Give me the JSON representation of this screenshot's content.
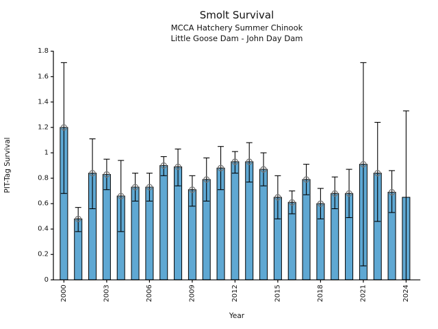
{
  "header": {
    "title": "Smolt Survival",
    "subtitle1": "MCCA Hatchery Summer Chinook",
    "subtitle2": "Little Goose Dam - John Day Dam"
  },
  "chart_data": {
    "type": "bar",
    "title": "Smolt Survival",
    "subtitle1": "MCCA Hatchery Summer Chinook",
    "subtitle2": "Little Goose Dam - John Day Dam",
    "xlabel": "Year",
    "ylabel": "PIT-Tag Survival",
    "ylim": [
      0,
      1.8
    ],
    "ytick_values": [
      0,
      0.2,
      0.4,
      0.6,
      0.8,
      1.0,
      1.2,
      1.4,
      1.6,
      1.8
    ],
    "ytick_labels": [
      "0",
      "0.2",
      "0.4",
      "0.6",
      "0.8",
      "1",
      "1.2",
      "1.4",
      "1.6",
      "1.8"
    ],
    "xtick_years": [
      2000,
      2003,
      2006,
      2009,
      2012,
      2015,
      2018,
      2021,
      2024
    ],
    "grid": false,
    "legend": "none",
    "bar_color": "#5FA8D3",
    "bar_edge_color": "#000000",
    "error_color": "#000000",
    "marker_color": "#777777",
    "marker_cross_color": "#222222",
    "years": [
      2000,
      2001,
      2002,
      2003,
      2004,
      2005,
      2006,
      2007,
      2008,
      2009,
      2010,
      2011,
      2012,
      2013,
      2014,
      2015,
      2016,
      2017,
      2018,
      2019,
      2020,
      2021,
      2022,
      2023,
      2024
    ],
    "values": [
      1.2,
      0.48,
      0.84,
      0.83,
      0.66,
      0.73,
      0.73,
      0.9,
      0.89,
      0.71,
      0.79,
      0.88,
      0.93,
      0.93,
      0.87,
      0.65,
      0.61,
      0.79,
      0.6,
      0.68,
      0.68,
      0.91,
      0.84,
      0.69,
      0.65
    ],
    "err_low": [
      0.68,
      0.38,
      0.56,
      0.71,
      0.38,
      0.62,
      0.62,
      0.82,
      0.74,
      0.58,
      0.62,
      0.71,
      0.84,
      0.77,
      0.74,
      0.48,
      0.52,
      0.67,
      0.48,
      0.56,
      0.49,
      0.11,
      0.46,
      0.53,
      0.0
    ],
    "err_high": [
      1.71,
      0.57,
      1.11,
      0.95,
      0.94,
      0.84,
      0.84,
      0.97,
      1.03,
      0.82,
      0.96,
      1.05,
      1.01,
      1.08,
      1.0,
      0.82,
      0.7,
      0.91,
      0.72,
      0.81,
      0.87,
      1.71,
      1.24,
      0.86,
      1.33
    ],
    "has_marker": [
      true,
      true,
      true,
      true,
      true,
      true,
      true,
      true,
      true,
      true,
      true,
      true,
      true,
      true,
      true,
      true,
      true,
      true,
      true,
      true,
      true,
      true,
      true,
      true,
      false
    ]
  }
}
